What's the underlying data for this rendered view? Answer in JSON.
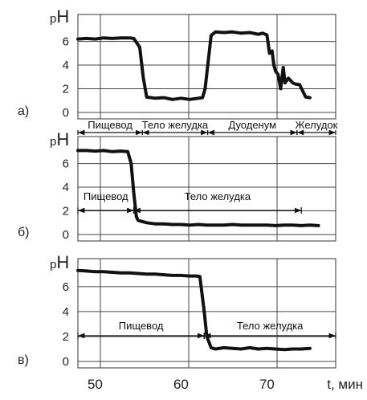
{
  "chart_data": [
    {
      "type": "line",
      "panel_label": "а)",
      "ylabel": "pH",
      "y_ticks": [
        "0",
        "2",
        "4",
        "6"
      ],
      "ylim": [
        0,
        7.6
      ],
      "xlim": [
        48,
        78
      ],
      "series": [
        {
          "x": [
            48,
            49,
            50,
            51,
            52,
            53,
            54,
            54.5,
            55.2,
            55.6,
            56,
            57,
            58,
            59,
            60,
            61,
            62,
            62.5,
            62.8,
            63.5,
            64,
            65,
            66,
            67,
            68,
            69,
            69.5,
            70,
            70.3,
            70.6,
            70.8,
            71,
            71.3,
            71.6,
            71.9,
            72.1,
            72.5,
            73,
            73.3,
            73.8,
            74.5,
            75
          ],
          "y": [
            6.2,
            6.25,
            6.2,
            6.3,
            6.25,
            6.3,
            6.3,
            6.25,
            5.5,
            3.0,
            1.3,
            1.2,
            1.25,
            1.1,
            1.2,
            1.1,
            1.2,
            1.25,
            2.0,
            6.5,
            6.8,
            6.75,
            6.8,
            6.7,
            6.75,
            6.6,
            6.7,
            6.55,
            5.0,
            5.2,
            4.0,
            3.5,
            3.2,
            2.0,
            3.8,
            2.5,
            2.9,
            2.5,
            2.4,
            2.35,
            1.3,
            1.25
          ]
        }
      ],
      "regions": [
        {
          "label": "Пищевод",
          "x_start": 48,
          "x_end": 55.5
        },
        {
          "label": "Тело желудка",
          "x_start": 55.5,
          "x_end": 63.1
        },
        {
          "label": "Дуоденум",
          "x_start": 63.1,
          "x_end": 73.5
        },
        {
          "label": "Желудок",
          "x_start": 73.5,
          "x_end": 78
        }
      ]
    },
    {
      "type": "line",
      "panel_label": "б)",
      "ylabel": "pH",
      "y_ticks": [
        "0",
        "2",
        "4",
        "6"
      ],
      "ylim": [
        0,
        7.6
      ],
      "xlim": [
        48,
        78
      ],
      "series": [
        {
          "x": [
            48,
            49,
            50,
            51,
            52,
            53,
            53.8,
            54.2,
            54.5,
            54.8,
            55,
            56,
            57,
            58,
            59,
            60,
            61,
            62,
            63,
            64,
            65,
            66,
            67,
            68,
            69,
            70,
            71,
            72,
            73,
            74,
            75,
            76
          ],
          "y": [
            7.1,
            7.1,
            7.05,
            7.1,
            7.0,
            7.05,
            7.0,
            6.0,
            3.5,
            1.5,
            1.2,
            1.0,
            0.9,
            0.9,
            0.85,
            0.85,
            0.8,
            0.85,
            0.8,
            0.8,
            0.8,
            0.85,
            0.8,
            0.8,
            0.8,
            0.8,
            0.75,
            0.8,
            0.8,
            0.75,
            0.8,
            0.75
          ]
        }
      ],
      "regions": [
        {
          "label": "Пищевод",
          "x_start": 48,
          "x_end": 54.5
        },
        {
          "label": "Тело желудка",
          "x_start": 54.5,
          "x_end": 74
        }
      ]
    },
    {
      "type": "line",
      "panel_label": "в)",
      "ylabel": "pH",
      "y_ticks": [
        "0",
        "2",
        "4",
        "6"
      ],
      "ylim": [
        0,
        7.6
      ],
      "xlim": [
        48,
        78
      ],
      "xlabel": "t, мин",
      "x_ticks": [
        "50",
        "60",
        "70"
      ],
      "series": [
        {
          "x": [
            48,
            49,
            50,
            51,
            52,
            53,
            54,
            55,
            56,
            57,
            58,
            59,
            60,
            61,
            61.8,
            62.2,
            62.7,
            63,
            63.5,
            64,
            65,
            66,
            67,
            68,
            69,
            70,
            71,
            72,
            73,
            74,
            75
          ],
          "y": [
            7.3,
            7.25,
            7.2,
            7.2,
            7.15,
            7.1,
            7.1,
            7.05,
            7.0,
            7.0,
            6.95,
            6.9,
            6.9,
            6.85,
            6.85,
            6.8,
            4.0,
            2.0,
            1.1,
            1.0,
            1.1,
            1.05,
            1.0,
            1.1,
            1.0,
            1.05,
            1.0,
            0.95,
            1.0,
            1.0,
            1.05
          ]
        }
      ],
      "regions": [
        {
          "label": "Пищевод",
          "x_start": 48,
          "x_end": 62.7
        },
        {
          "label": "Тело желудка",
          "x_start": 62.7,
          "x_end": 78
        }
      ]
    }
  ]
}
